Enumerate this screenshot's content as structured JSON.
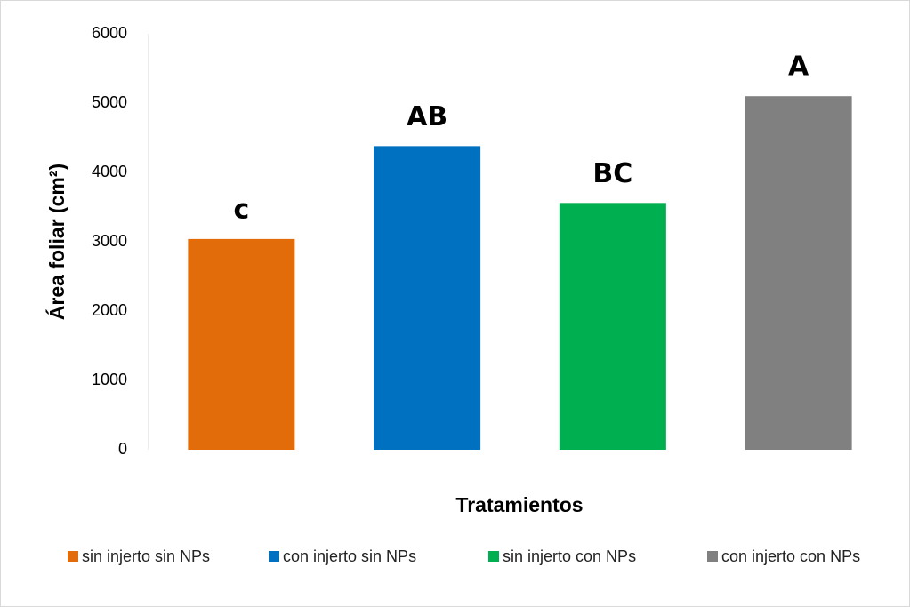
{
  "chart_data": {
    "type": "bar",
    "categories": [
      null
    ],
    "series": [
      {
        "name": "sin injerto sin NPs",
        "color": "#e36c0a",
        "values": [
          3040
        ]
      },
      {
        "name": "con injerto sin NPs",
        "color": "#0070c0",
        "values": [
          4380
        ]
      },
      {
        "name": "sin injerto con NPs",
        "color": "#00b050",
        "values": [
          3560
        ]
      },
      {
        "name": "con injerto con NPs",
        "color": "#808080",
        "values": [
          5100
        ]
      }
    ],
    "annotations": [
      "c",
      "AB",
      "BC",
      "A"
    ],
    "x_label": "Tratamientos",
    "y_label": "Área foliar (cm²)",
    "ylim": [
      0,
      6000
    ],
    "yticks": [
      0,
      1000,
      2000,
      3000,
      4000,
      5000,
      6000
    ],
    "grid": false,
    "legend": "bottom"
  }
}
